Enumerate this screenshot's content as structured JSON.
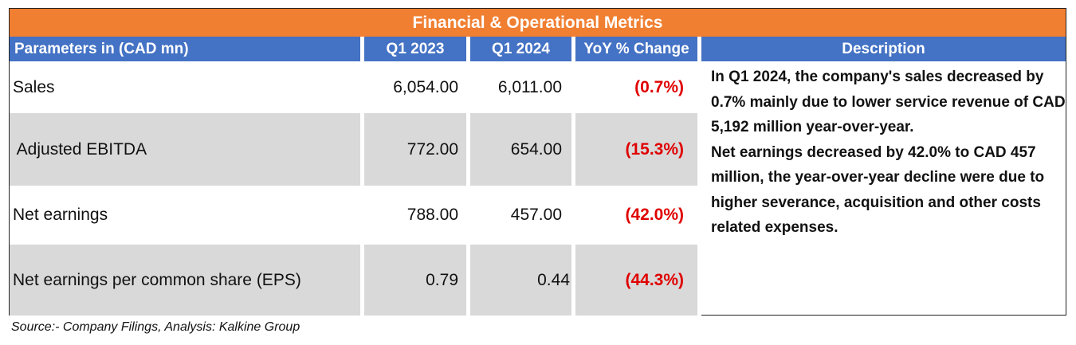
{
  "title": "Financial & Operational Metrics",
  "headers": {
    "parameter": "Parameters in (CAD mn)",
    "q1_2023": "Q1 2023",
    "q1_2024": "Q1 2024",
    "yoy": "YoY % Change",
    "description": "Description"
  },
  "rows": [
    {
      "parameter": "Sales",
      "q1_2023": "6,054.00",
      "q1_2024": "6,011.00",
      "yoy": "(0.7%)"
    },
    {
      "parameter": " Adjusted EBITDA",
      "q1_2023": "772.00",
      "q1_2024": "654.00",
      "yoy": "(15.3%)"
    },
    {
      "parameter": "Net earnings",
      "q1_2023": "788.00",
      "q1_2024": "457.00",
      "yoy": "(42.0%)"
    },
    {
      "parameter": "Net earnings per common share (EPS)",
      "q1_2023": "0.79",
      "q1_2024": "0.44",
      "yoy": "(44.3%)"
    }
  ],
  "description": [
    "In Q1 2024, the company's sales decreased by 0.7%  mainly due to lower service revenue of CAD 5,192 million  year-over-year.",
    "Net earnings decreased by 42.0% to CAD 457 million, the year-over-year decline were due to higher severance, acquisition and other costs related expenses."
  ],
  "source": "Source:- Company Filings, Analysis: Kalkine Group",
  "colors": {
    "title_bg": "#f07f31",
    "header_bg": "#4472c4",
    "row_alt_bg": "#d9d9d9",
    "negative_text": "#e00000"
  }
}
